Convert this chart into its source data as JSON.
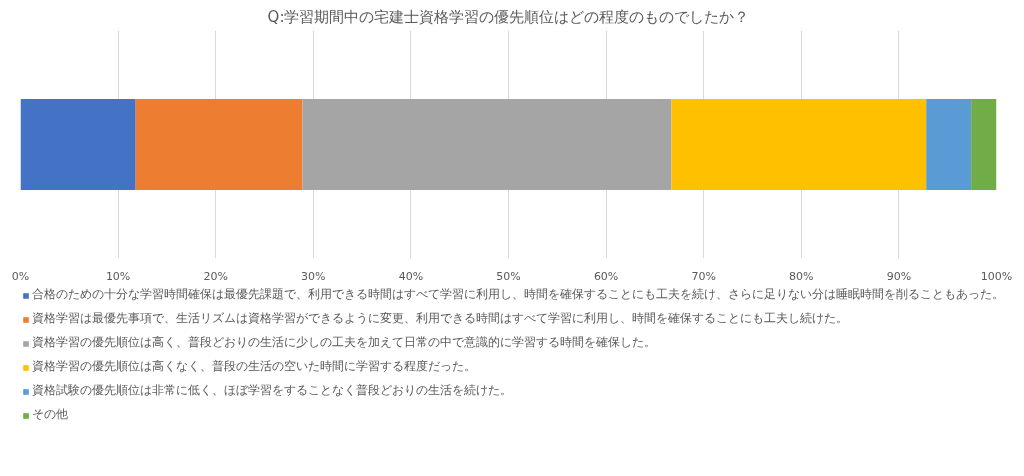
{
  "chart_data": {
    "type": "bar",
    "orientation": "horizontal",
    "stacked": true,
    "title": "Q:学習期間中の宅建士資格学習の優先順位はどの程度のものでしたか？",
    "categories": [
      null
    ],
    "series": [
      {
        "name": "合格のための十分な学習時間確保は最優先課題で、利用できる時間はすべて学習に利用し、時間を確保することにも工夫を続け、さらに足りない分は睡眠時間を削ることもあった。",
        "color": "#4472c4",
        "values": [
          11.8
        ]
      },
      {
        "name": "資格学習は最優先事項で、生活リズムは資格学習ができるように変更、利用できる時間はすべて学習に利用し、時間を確保することにも工夫し続けた。",
        "color": "#ed7d31",
        "values": [
          17.1
        ]
      },
      {
        "name": "資格学習の優先順位は高く、普段どおりの生活に少しの工夫を加えて日常の中で意識的に学習する時間を確保した。",
        "color": "#a5a5a5",
        "values": [
          37.8
        ]
      },
      {
        "name": "資格学習の優先順位は高くなく、普段の生活の空いた時間に学習する程度だった。",
        "color": "#ffc000",
        "values": [
          26.1
        ]
      },
      {
        "name": "資格試験の優先順位は非常に低く、ほぼ学習をすることなく普段どおりの生活を続けた。",
        "color": "#5b9bd5",
        "values": [
          4.6
        ]
      },
      {
        "name": "その他",
        "color": "#70ad47",
        "values": [
          2.6
        ]
      }
    ],
    "xlim": [
      0,
      100
    ],
    "xticks": [
      {
        "value": 0,
        "label": "0%"
      },
      {
        "value": 10,
        "label": "10%"
      },
      {
        "value": 20,
        "label": "20%"
      },
      {
        "value": 30,
        "label": "30%"
      },
      {
        "value": 40,
        "label": "40%"
      },
      {
        "value": 50,
        "label": "50%"
      },
      {
        "value": 60,
        "label": "60%"
      },
      {
        "value": 70,
        "label": "70%"
      },
      {
        "value": 80,
        "label": "80%"
      },
      {
        "value": 90,
        "label": "90%"
      },
      {
        "value": 100,
        "label": "100%"
      }
    ],
    "grid": "x",
    "legend": "bottom",
    "tick_labels": "x"
  }
}
